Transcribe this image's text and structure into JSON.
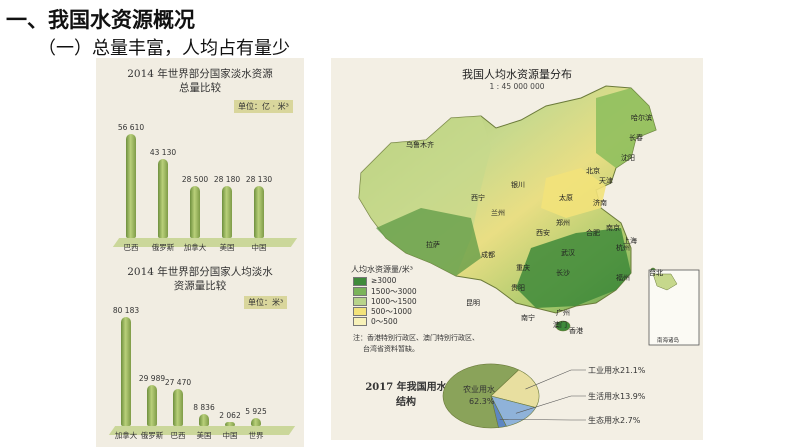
{
  "heading": "一、我国水资源概况",
  "subheading": "（一）总量丰富，人均占有量少",
  "chart_total": {
    "title_line1": "2014 年世界部分国家淡水资源",
    "title_line2": "总量比较",
    "unit": "单位：亿 · 米³"
  },
  "chart_per_capita": {
    "title_line1": "2014 年世界部分国家人均淡水",
    "title_line2": "资源量比较",
    "unit": "单位：米³"
  },
  "chart_data": [
    {
      "type": "bar",
      "title": "2014 年世界部分国家淡水资源总量比较",
      "categories": [
        "巴西",
        "俄罗斯",
        "加拿大",
        "美国",
        "中国"
      ],
      "values": [
        56610,
        43130,
        28500,
        28180,
        28130
      ],
      "value_labels": [
        "56 610",
        "43 130",
        "28 500",
        "28 180",
        "28 130"
      ],
      "unit": "单位：亿 · 米³",
      "ylim": [
        0,
        60000
      ]
    },
    {
      "type": "bar",
      "title": "2014 年世界部分国家人均淡水资源量比较",
      "categories": [
        "加拿大",
        "俄罗斯",
        "巴西",
        "美国",
        "中国",
        "世界"
      ],
      "values": [
        80183,
        29989,
        27470,
        8836,
        2062,
        5925
      ],
      "value_labels": [
        "80 183",
        "29 989",
        "27 470",
        "8 836",
        "2 062",
        "5 925"
      ],
      "unit": "单位：米³",
      "ylim": [
        0,
        85000
      ]
    },
    {
      "type": "pie",
      "title": "2017 年我国用水结构",
      "labels": [
        "农业用水",
        "工业用水",
        "生活用水",
        "生态用水"
      ],
      "values": [
        62.3,
        21.1,
        13.9,
        2.7
      ],
      "value_labels": [
        "62.3%",
        "21.1%",
        "13.9%",
        "2.7%"
      ],
      "colors": [
        "#8aa35a",
        "#e8dfa0",
        "#8fb2d9",
        "#5d86c2"
      ]
    }
  ],
  "map": {
    "title": "我国人均水资源量分布",
    "scale": "1 : 45 000 000",
    "legend_title": "人均水资源量/米³",
    "legend_items": [
      {
        "label": "≥3000",
        "color": "#3f8a3a"
      },
      {
        "label": "1500～3000",
        "color": "#7bb35a"
      },
      {
        "label": "1000～1500",
        "color": "#b8d38a"
      },
      {
        "label": "500～1000",
        "color": "#f2e27a"
      },
      {
        "label": "0～500",
        "color": "#f7f1b8"
      }
    ],
    "note_line1": "注：香港特别行政区、澳门特别行政区、",
    "note_line2": "台湾省资料暂缺。",
    "inset_label": "南海诸岛",
    "cities": [
      "北京",
      "乌鲁木齐",
      "拉萨",
      "兰州",
      "西宁",
      "银川",
      "西安",
      "成都",
      "重庆",
      "武汉",
      "上海",
      "昆明",
      "南宁",
      "广州",
      "香港",
      "澳门",
      "台北",
      "天津",
      "济南",
      "南京",
      "杭州",
      "长沙",
      "贵阳",
      "福州",
      "合肥",
      "郑州",
      "太原",
      "沈阳",
      "长春",
      "哈尔滨"
    ]
  }
}
